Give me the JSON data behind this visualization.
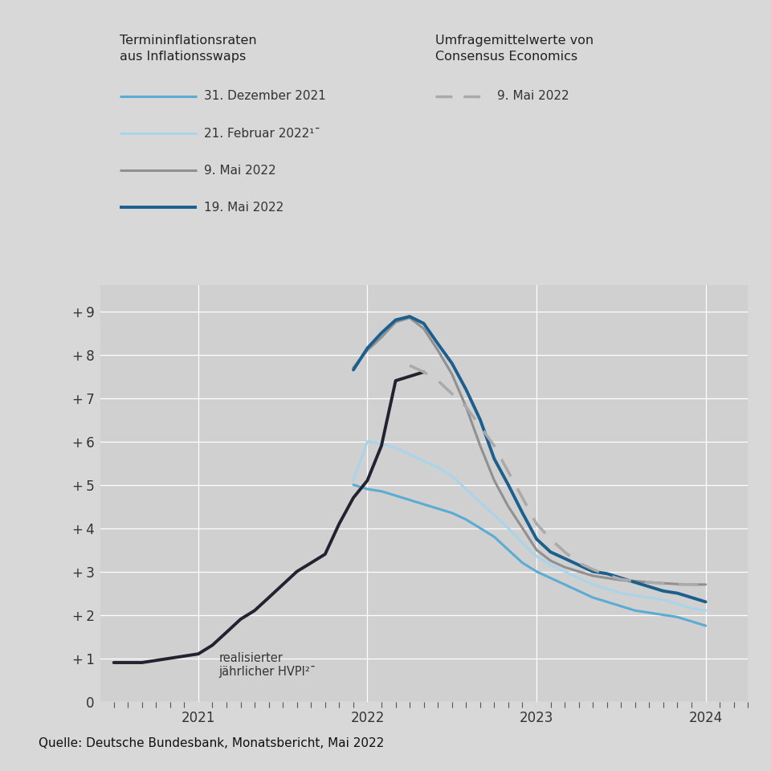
{
  "background_color": "#d8d8d8",
  "plot_bg_color": "#d0d0d0",
  "source": "Quelle: Deutsche Bundesbank, Monatsbericht, Mai 2022",
  "source_bg": "#000000",
  "ylim": [
    0,
    9.6
  ],
  "yticks": [
    0,
    1,
    2,
    3,
    4,
    5,
    6,
    7,
    8,
    9
  ],
  "ytick_labels": [
    "0",
    "+ 1",
    "+ 2",
    "+ 3",
    "+ 4",
    "+ 5",
    "+ 6",
    "+ 7",
    "+ 8",
    "+ 9"
  ],
  "xlim": [
    2020.42,
    2024.25
  ],
  "xtick_positions": [
    2021.0,
    2022.0,
    2023.0,
    2024.0
  ],
  "xtick_labels": [
    "2021",
    "2022",
    "2023",
    "2024"
  ],
  "hvpi": {
    "color": "#222230",
    "linewidth": 2.8,
    "x": [
      2020.5,
      2020.583,
      2020.667,
      2020.75,
      2020.833,
      2020.917,
      2021.0,
      2021.083,
      2021.167,
      2021.25,
      2021.333,
      2021.417,
      2021.5,
      2021.583,
      2021.667,
      2021.75,
      2021.833,
      2021.917,
      2022.0,
      2022.083,
      2022.167,
      2022.25,
      2022.333
    ],
    "y": [
      0.9,
      0.9,
      0.9,
      0.95,
      1.0,
      1.05,
      1.1,
      1.3,
      1.6,
      1.9,
      2.1,
      2.4,
      2.7,
      3.0,
      3.2,
      3.4,
      4.1,
      4.7,
      5.1,
      5.9,
      7.4,
      7.5,
      7.6
    ]
  },
  "dec2021": {
    "color": "#5bacd4",
    "linewidth": 2.2,
    "x": [
      2021.917,
      2022.0,
      2022.083,
      2022.167,
      2022.25,
      2022.333,
      2022.417,
      2022.5,
      2022.583,
      2022.667,
      2022.75,
      2022.833,
      2022.917,
      2023.0,
      2023.083,
      2023.167,
      2023.25,
      2023.333,
      2023.417,
      2023.5,
      2023.583,
      2023.667,
      2023.75,
      2023.833,
      2023.917,
      2024.0
    ],
    "y": [
      5.0,
      4.9,
      4.85,
      4.75,
      4.65,
      4.55,
      4.45,
      4.35,
      4.2,
      4.0,
      3.8,
      3.5,
      3.2,
      3.0,
      2.85,
      2.7,
      2.55,
      2.4,
      2.3,
      2.2,
      2.1,
      2.05,
      2.0,
      1.95,
      1.85,
      1.75
    ]
  },
  "feb2022": {
    "color": "#aad4ea",
    "linewidth": 2.2,
    "x": [
      2021.917,
      2022.0,
      2022.083,
      2022.167,
      2022.25,
      2022.333,
      2022.417,
      2022.5,
      2022.583,
      2022.667,
      2022.75,
      2022.833,
      2022.917,
      2023.0,
      2023.083,
      2023.167,
      2023.25,
      2023.333,
      2023.417,
      2023.5,
      2023.583,
      2023.667,
      2023.75,
      2023.833,
      2023.917,
      2024.0
    ],
    "y": [
      5.1,
      6.0,
      5.95,
      5.85,
      5.7,
      5.55,
      5.4,
      5.2,
      4.9,
      4.6,
      4.3,
      4.0,
      3.65,
      3.35,
      3.15,
      3.0,
      2.85,
      2.7,
      2.6,
      2.5,
      2.45,
      2.4,
      2.35,
      2.25,
      2.15,
      2.1
    ]
  },
  "may9_swap": {
    "color": "#909090",
    "linewidth": 2.2,
    "x": [
      2021.917,
      2022.0,
      2022.083,
      2022.167,
      2022.25,
      2022.333,
      2022.417,
      2022.5,
      2022.583,
      2022.667,
      2022.75,
      2022.833,
      2022.917,
      2023.0,
      2023.083,
      2023.167,
      2023.25,
      2023.333,
      2023.417,
      2023.5,
      2023.583,
      2023.667,
      2023.75,
      2023.833,
      2023.917,
      2024.0
    ],
    "y": [
      7.7,
      8.1,
      8.4,
      8.75,
      8.85,
      8.6,
      8.1,
      7.55,
      6.8,
      5.9,
      5.1,
      4.5,
      4.0,
      3.5,
      3.25,
      3.1,
      3.0,
      2.9,
      2.85,
      2.8,
      2.78,
      2.75,
      2.73,
      2.71,
      2.7,
      2.7
    ]
  },
  "may19": {
    "color": "#1a5f8e",
    "linewidth": 2.8,
    "x": [
      2021.917,
      2022.0,
      2022.083,
      2022.167,
      2022.25,
      2022.333,
      2022.417,
      2022.5,
      2022.583,
      2022.667,
      2022.75,
      2022.833,
      2022.917,
      2023.0,
      2023.083,
      2023.167,
      2023.25,
      2023.333,
      2023.417,
      2023.5,
      2023.583,
      2023.667,
      2023.75,
      2023.833,
      2023.917,
      2024.0
    ],
    "y": [
      7.65,
      8.15,
      8.5,
      8.8,
      8.88,
      8.72,
      8.25,
      7.8,
      7.2,
      6.5,
      5.6,
      5.0,
      4.35,
      3.75,
      3.45,
      3.3,
      3.15,
      3.0,
      2.95,
      2.85,
      2.75,
      2.65,
      2.55,
      2.5,
      2.4,
      2.3
    ]
  },
  "consensus": {
    "color": "#aaaaaa",
    "linewidth": 2.5,
    "x": [
      2022.25,
      2022.333,
      2022.417,
      2022.5,
      2022.583,
      2022.667,
      2022.75,
      2022.833,
      2022.917,
      2023.0,
      2023.083,
      2023.167,
      2023.25,
      2023.333,
      2023.417,
      2023.5,
      2023.583,
      2023.667,
      2023.75,
      2023.833,
      2023.917,
      2024.0
    ],
    "y": [
      7.75,
      7.6,
      7.4,
      7.1,
      6.8,
      6.35,
      5.9,
      5.3,
      4.7,
      4.1,
      3.75,
      3.45,
      3.2,
      3.05,
      2.92,
      2.82,
      2.78,
      2.75,
      2.72,
      2.7,
      2.7,
      2.7
    ]
  },
  "legend_left_header": "Termininflationsraten\naus Inflationsswaps",
  "legend_right_header": "Umfragemittelwerte von\nConsensus Economics",
  "legend_entries_left": [
    {
      "label": "31. Dezember 2021",
      "color": "#5bacd4",
      "lw": 2.2,
      "ls": "solid"
    },
    {
      "label": "21. Februar 2022¹ˉ",
      "color": "#aad4ea",
      "lw": 2.2,
      "ls": "solid"
    },
    {
      "label": "9. Mai 2022",
      "color": "#909090",
      "lw": 2.2,
      "ls": "solid"
    },
    {
      "label": "19. Mai 2022",
      "color": "#1a5f8e",
      "lw": 2.8,
      "ls": "solid"
    }
  ],
  "legend_entry_right": {
    "label": "9. Mai 2022",
    "color": "#aaaaaa",
    "lw": 2.5,
    "ls": "dashed"
  },
  "hvpi_annotation": "realisierter\njährlicher HVPI²ˉ"
}
